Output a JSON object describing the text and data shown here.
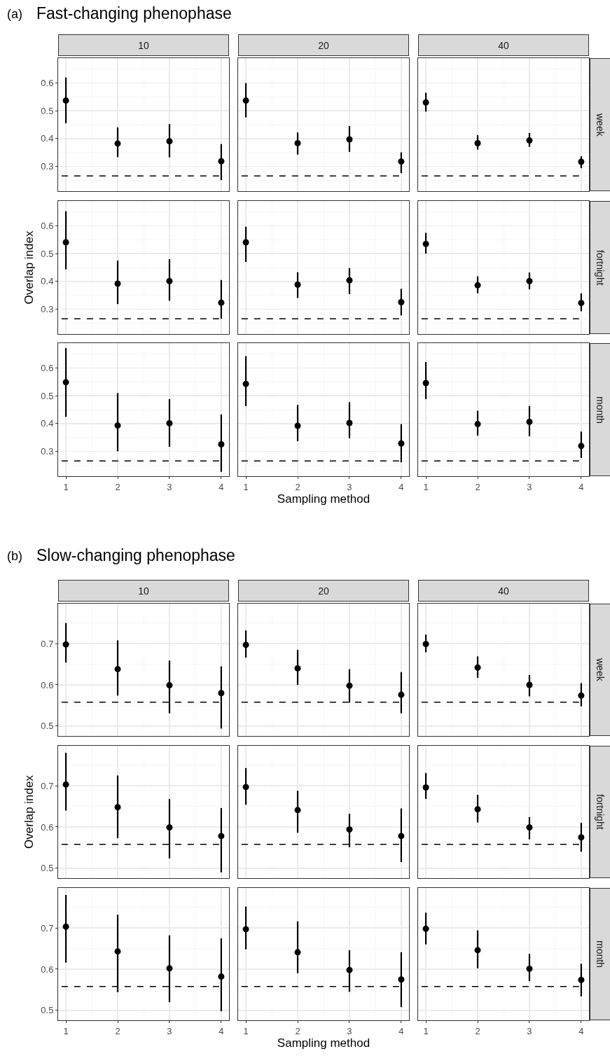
{
  "chart_data": [
    {
      "type": "scatter",
      "annotations": [
        "(a)",
        "Fast-changing phenophase"
      ],
      "title": "10",
      "x": [
        1,
        2,
        3,
        4
      ],
      "xlim": [
        0.85,
        4.15
      ],
      "xticks": [
        1,
        2,
        3,
        4
      ],
      "ylim": [
        0.21,
        0.69
      ],
      "yticks": [
        0.3,
        0.4,
        0.5,
        0.6
      ],
      "grid": true,
      "marker": "circle",
      "tick_labels": "y",
      "ref_lines": [
        {
          "axis": "y",
          "value": 0.265,
          "line_style": "dashed",
          "color": "#000000"
        }
      ],
      "series": [
        {
          "color": "#000000",
          "values": [
            0.537,
            0.382,
            0.39,
            0.318
          ],
          "errors": [
            [
              0.455,
              0.62
            ],
            [
              0.333,
              0.44
            ],
            [
              0.332,
              0.452
            ],
            [
              0.25,
              0.38
            ]
          ]
        }
      ]
    },
    {
      "type": "scatter",
      "title": "20",
      "x": [
        1,
        2,
        3,
        4
      ],
      "xlim": [
        0.85,
        4.15
      ],
      "xticks": [
        1,
        2,
        3,
        4
      ],
      "ylim": [
        0.21,
        0.69
      ],
      "yticks": [
        0.3,
        0.4,
        0.5,
        0.6
      ],
      "grid": true,
      "marker": "circle",
      "tick_labels": false,
      "ref_lines": [
        {
          "axis": "y",
          "value": 0.265,
          "line_style": "dashed",
          "color": "#000000"
        }
      ],
      "series": [
        {
          "color": "#000000",
          "values": [
            0.537,
            0.383,
            0.397,
            0.317
          ],
          "errors": [
            [
              0.476,
              0.6
            ],
            [
              0.342,
              0.422
            ],
            [
              0.352,
              0.445
            ],
            [
              0.275,
              0.35
            ]
          ]
        }
      ]
    },
    {
      "type": "scatter",
      "title": "40",
      "y2label": "week",
      "x": [
        1,
        2,
        3,
        4
      ],
      "xlim": [
        0.85,
        4.15
      ],
      "xticks": [
        1,
        2,
        3,
        4
      ],
      "ylim": [
        0.21,
        0.69
      ],
      "yticks": [
        0.3,
        0.4,
        0.5,
        0.6
      ],
      "grid": true,
      "marker": "circle",
      "tick_labels": false,
      "ref_lines": [
        {
          "axis": "y",
          "value": 0.265,
          "line_style": "dashed",
          "color": "#000000"
        }
      ],
      "series": [
        {
          "color": "#000000",
          "values": [
            0.53,
            0.383,
            0.393,
            0.316
          ],
          "errors": [
            [
              0.497,
              0.565
            ],
            [
              0.36,
              0.412
            ],
            [
              0.37,
              0.42
            ],
            [
              0.293,
              0.336
            ]
          ]
        }
      ]
    },
    {
      "type": "scatter",
      "ylabel": "Overlap index",
      "x": [
        1,
        2,
        3,
        4
      ],
      "xlim": [
        0.85,
        4.15
      ],
      "xticks": [
        1,
        2,
        3,
        4
      ],
      "ylim": [
        0.21,
        0.69
      ],
      "yticks": [
        0.3,
        0.4,
        0.5,
        0.6
      ],
      "grid": true,
      "marker": "circle",
      "tick_labels": "y",
      "ref_lines": [
        {
          "axis": "y",
          "value": 0.265,
          "line_style": "dashed",
          "color": "#000000"
        }
      ],
      "series": [
        {
          "color": "#000000",
          "values": [
            0.541,
            0.392,
            0.401,
            0.323
          ],
          "errors": [
            [
              0.443,
              0.653
            ],
            [
              0.318,
              0.475
            ],
            [
              0.33,
              0.48
            ],
            [
              0.265,
              0.405
            ]
          ]
        }
      ]
    },
    {
      "type": "scatter",
      "x": [
        1,
        2,
        3,
        4
      ],
      "xlim": [
        0.85,
        4.15
      ],
      "xticks": [
        1,
        2,
        3,
        4
      ],
      "ylim": [
        0.21,
        0.69
      ],
      "yticks": [
        0.3,
        0.4,
        0.5,
        0.6
      ],
      "grid": true,
      "marker": "circle",
      "tick_labels": false,
      "ref_lines": [
        {
          "axis": "y",
          "value": 0.265,
          "line_style": "dashed",
          "color": "#000000"
        }
      ],
      "series": [
        {
          "color": "#000000",
          "values": [
            0.541,
            0.388,
            0.404,
            0.325
          ],
          "errors": [
            [
              0.47,
              0.597
            ],
            [
              0.34,
              0.433
            ],
            [
              0.354,
              0.448
            ],
            [
              0.277,
              0.373
            ]
          ]
        }
      ]
    },
    {
      "type": "scatter",
      "y2label": "fortnight",
      "x": [
        1,
        2,
        3,
        4
      ],
      "xlim": [
        0.85,
        4.15
      ],
      "xticks": [
        1,
        2,
        3,
        4
      ],
      "ylim": [
        0.21,
        0.69
      ],
      "yticks": [
        0.3,
        0.4,
        0.5,
        0.6
      ],
      "grid": true,
      "marker": "circle",
      "tick_labels": false,
      "ref_lines": [
        {
          "axis": "y",
          "value": 0.265,
          "line_style": "dashed",
          "color": "#000000"
        }
      ],
      "series": [
        {
          "color": "#000000",
          "values": [
            0.535,
            0.386,
            0.401,
            0.322
          ],
          "errors": [
            [
              0.5,
              0.575
            ],
            [
              0.357,
              0.418
            ],
            [
              0.371,
              0.432
            ],
            [
              0.292,
              0.357
            ]
          ]
        }
      ]
    },
    {
      "type": "scatter",
      "x": [
        1,
        2,
        3,
        4
      ],
      "xlim": [
        0.85,
        4.15
      ],
      "xticks": [
        1,
        2,
        3,
        4
      ],
      "ylim": [
        0.21,
        0.69
      ],
      "yticks": [
        0.3,
        0.4,
        0.5,
        0.6
      ],
      "grid": true,
      "marker": "circle",
      "ref_lines": [
        {
          "axis": "y",
          "value": 0.265,
          "line_style": "dashed",
          "color": "#000000"
        }
      ],
      "series": [
        {
          "color": "#000000",
          "values": [
            0.549,
            0.393,
            0.401,
            0.325
          ],
          "errors": [
            [
              0.424,
              0.672
            ],
            [
              0.3,
              0.51
            ],
            [
              0.316,
              0.488
            ],
            [
              0.226,
              0.433
            ]
          ]
        }
      ]
    },
    {
      "type": "scatter",
      "xlabel": "Sampling method",
      "x": [
        1,
        2,
        3,
        4
      ],
      "xlim": [
        0.85,
        4.15
      ],
      "xticks": [
        1,
        2,
        3,
        4
      ],
      "ylim": [
        0.21,
        0.69
      ],
      "yticks": [
        0.3,
        0.4,
        0.5,
        0.6
      ],
      "grid": true,
      "marker": "circle",
      "tick_labels": "x",
      "ref_lines": [
        {
          "axis": "y",
          "value": 0.265,
          "line_style": "dashed",
          "color": "#000000"
        }
      ],
      "series": [
        {
          "color": "#000000",
          "values": [
            0.543,
            0.392,
            0.402,
            0.328
          ],
          "errors": [
            [
              0.463,
              0.643
            ],
            [
              0.336,
              0.467
            ],
            [
              0.347,
              0.477
            ],
            [
              0.26,
              0.398
            ]
          ]
        }
      ]
    },
    {
      "type": "scatter",
      "y2label": "month",
      "x": [
        1,
        2,
        3,
        4
      ],
      "xlim": [
        0.85,
        4.15
      ],
      "xticks": [
        1,
        2,
        3,
        4
      ],
      "ylim": [
        0.21,
        0.69
      ],
      "yticks": [
        0.3,
        0.4,
        0.5,
        0.6
      ],
      "grid": true,
      "marker": "circle",
      "tick_labels": "x",
      "ref_lines": [
        {
          "axis": "y",
          "value": 0.265,
          "line_style": "dashed",
          "color": "#000000"
        }
      ],
      "series": [
        {
          "color": "#000000",
          "values": [
            0.546,
            0.398,
            0.406,
            0.319
          ],
          "errors": [
            [
              0.488,
              0.622
            ],
            [
              0.356,
              0.446
            ],
            [
              0.354,
              0.463
            ],
            [
              0.276,
              0.371
            ]
          ]
        }
      ]
    },
    {
      "type": "scatter",
      "annotations": [
        "(b)",
        "Slow-changing phenophase"
      ],
      "title": "10",
      "x": [
        1,
        2,
        3,
        4
      ],
      "xlim": [
        0.85,
        4.15
      ],
      "xticks": [
        1,
        2,
        3,
        4
      ],
      "ylim": [
        0.476,
        0.797
      ],
      "yticks": [
        0.5,
        0.6,
        0.7
      ],
      "grid": true,
      "marker": "circle",
      "tick_labels": "y",
      "ref_lines": [
        {
          "axis": "y",
          "value": 0.558,
          "line_style": "dashed",
          "color": "#000000"
        }
      ],
      "series": [
        {
          "color": "#000000",
          "values": [
            0.698,
            0.638,
            0.599,
            0.58
          ],
          "errors": [
            [
              0.654,
              0.75
            ],
            [
              0.574,
              0.708
            ],
            [
              0.531,
              0.659
            ],
            [
              0.494,
              0.645
            ]
          ]
        }
      ]
    },
    {
      "type": "scatter",
      "title": "20",
      "x": [
        1,
        2,
        3,
        4
      ],
      "xlim": [
        0.85,
        4.15
      ],
      "xticks": [
        1,
        2,
        3,
        4
      ],
      "ylim": [
        0.476,
        0.797
      ],
      "yticks": [
        0.5,
        0.6,
        0.7
      ],
      "grid": true,
      "marker": "circle",
      "tick_labels": false,
      "ref_lines": [
        {
          "axis": "y",
          "value": 0.558,
          "line_style": "dashed",
          "color": "#000000"
        }
      ],
      "series": [
        {
          "color": "#000000",
          "values": [
            0.697,
            0.64,
            0.598,
            0.576
          ],
          "errors": [
            [
              0.666,
              0.732
            ],
            [
              0.6,
              0.685
            ],
            [
              0.557,
              0.638
            ],
            [
              0.531,
              0.631
            ]
          ]
        }
      ]
    },
    {
      "type": "scatter",
      "title": "40",
      "y2label": "week",
      "x": [
        1,
        2,
        3,
        4
      ],
      "xlim": [
        0.85,
        4.15
      ],
      "xticks": [
        1,
        2,
        3,
        4
      ],
      "ylim": [
        0.476,
        0.797
      ],
      "yticks": [
        0.5,
        0.6,
        0.7
      ],
      "grid": true,
      "marker": "circle",
      "tick_labels": false,
      "ref_lines": [
        {
          "axis": "y",
          "value": 0.558,
          "line_style": "dashed",
          "color": "#000000"
        }
      ],
      "series": [
        {
          "color": "#000000",
          "values": [
            0.699,
            0.642,
            0.6,
            0.574
          ],
          "errors": [
            [
              0.679,
              0.722
            ],
            [
              0.617,
              0.669
            ],
            [
              0.572,
              0.624
            ],
            [
              0.548,
              0.604
            ]
          ]
        }
      ]
    },
    {
      "type": "scatter",
      "ylabel": "Overlap index",
      "x": [
        1,
        2,
        3,
        4
      ],
      "xlim": [
        0.85,
        4.15
      ],
      "xticks": [
        1,
        2,
        3,
        4
      ],
      "ylim": [
        0.476,
        0.797
      ],
      "yticks": [
        0.5,
        0.6,
        0.7
      ],
      "grid": true,
      "marker": "circle",
      "tick_labels": "y",
      "ref_lines": [
        {
          "axis": "y",
          "value": 0.558,
          "line_style": "dashed",
          "color": "#000000"
        }
      ],
      "series": [
        {
          "color": "#000000",
          "values": [
            0.703,
            0.648,
            0.599,
            0.578
          ],
          "errors": [
            [
              0.64,
              0.78
            ],
            [
              0.573,
              0.725
            ],
            [
              0.524,
              0.668
            ],
            [
              0.49,
              0.646
            ]
          ]
        }
      ]
    },
    {
      "type": "scatter",
      "x": [
        1,
        2,
        3,
        4
      ],
      "xlim": [
        0.85,
        4.15
      ],
      "xticks": [
        1,
        2,
        3,
        4
      ],
      "ylim": [
        0.476,
        0.797
      ],
      "yticks": [
        0.5,
        0.6,
        0.7
      ],
      "grid": true,
      "marker": "circle",
      "tick_labels": false,
      "ref_lines": [
        {
          "axis": "y",
          "value": 0.558,
          "line_style": "dashed",
          "color": "#000000"
        }
      ],
      "series": [
        {
          "color": "#000000",
          "values": [
            0.697,
            0.641,
            0.594,
            0.578
          ],
          "errors": [
            [
              0.654,
              0.743
            ],
            [
              0.586,
              0.688
            ],
            [
              0.551,
              0.632
            ],
            [
              0.515,
              0.645
            ]
          ]
        }
      ]
    },
    {
      "type": "scatter",
      "y2label": "fortnight",
      "x": [
        1,
        2,
        3,
        4
      ],
      "xlim": [
        0.85,
        4.15
      ],
      "xticks": [
        1,
        2,
        3,
        4
      ],
      "ylim": [
        0.476,
        0.797
      ],
      "yticks": [
        0.5,
        0.6,
        0.7
      ],
      "grid": true,
      "marker": "circle",
      "tick_labels": false,
      "ref_lines": [
        {
          "axis": "y",
          "value": 0.558,
          "line_style": "dashed",
          "color": "#000000"
        }
      ],
      "series": [
        {
          "color": "#000000",
          "values": [
            0.696,
            0.643,
            0.599,
            0.575
          ],
          "errors": [
            [
              0.668,
              0.731
            ],
            [
              0.611,
              0.678
            ],
            [
              0.57,
              0.624
            ],
            [
              0.54,
              0.61
            ]
          ]
        }
      ]
    },
    {
      "type": "scatter",
      "x": [
        1,
        2,
        3,
        4
      ],
      "xlim": [
        0.85,
        4.15
      ],
      "xticks": [
        1,
        2,
        3,
        4
      ],
      "ylim": [
        0.476,
        0.797
      ],
      "yticks": [
        0.5,
        0.6,
        0.7
      ],
      "grid": true,
      "marker": "circle",
      "ref_lines": [
        {
          "axis": "y",
          "value": 0.558,
          "line_style": "dashed",
          "color": "#000000"
        }
      ],
      "series": [
        {
          "color": "#000000",
          "values": [
            0.703,
            0.643,
            0.602,
            0.582
          ],
          "errors": [
            [
              0.616,
              0.78
            ],
            [
              0.544,
              0.732
            ],
            [
              0.52,
              0.682
            ],
            [
              0.498,
              0.675
            ]
          ]
        }
      ]
    },
    {
      "type": "scatter",
      "xlabel": "Sampling method",
      "x": [
        1,
        2,
        3,
        4
      ],
      "xlim": [
        0.85,
        4.15
      ],
      "xticks": [
        1,
        2,
        3,
        4
      ],
      "ylim": [
        0.476,
        0.797
      ],
      "yticks": [
        0.5,
        0.6,
        0.7
      ],
      "grid": true,
      "marker": "circle",
      "tick_labels": "x",
      "ref_lines": [
        {
          "axis": "y",
          "value": 0.558,
          "line_style": "dashed",
          "color": "#000000"
        }
      ],
      "series": [
        {
          "color": "#000000",
          "values": [
            0.697,
            0.641,
            0.598,
            0.575
          ],
          "errors": [
            [
              0.648,
              0.752
            ],
            [
              0.59,
              0.716
            ],
            [
              0.545,
              0.646
            ],
            [
              0.508,
              0.641
            ]
          ]
        }
      ]
    },
    {
      "type": "scatter",
      "y2label": "month",
      "x": [
        1,
        2,
        3,
        4
      ],
      "xlim": [
        0.85,
        4.15
      ],
      "xticks": [
        1,
        2,
        3,
        4
      ],
      "ylim": [
        0.476,
        0.797
      ],
      "yticks": [
        0.5,
        0.6,
        0.7
      ],
      "grid": true,
      "marker": "circle",
      "tick_labels": "x",
      "ref_lines": [
        {
          "axis": "y",
          "value": 0.558,
          "line_style": "dashed",
          "color": "#000000"
        }
      ],
      "series": [
        {
          "color": "#000000",
          "values": [
            0.698,
            0.646,
            0.601,
            0.574
          ],
          "errors": [
            [
              0.66,
              0.737
            ],
            [
              0.602,
              0.694
            ],
            [
              0.571,
              0.637
            ],
            [
              0.534,
              0.613
            ]
          ]
        }
      ]
    }
  ]
}
